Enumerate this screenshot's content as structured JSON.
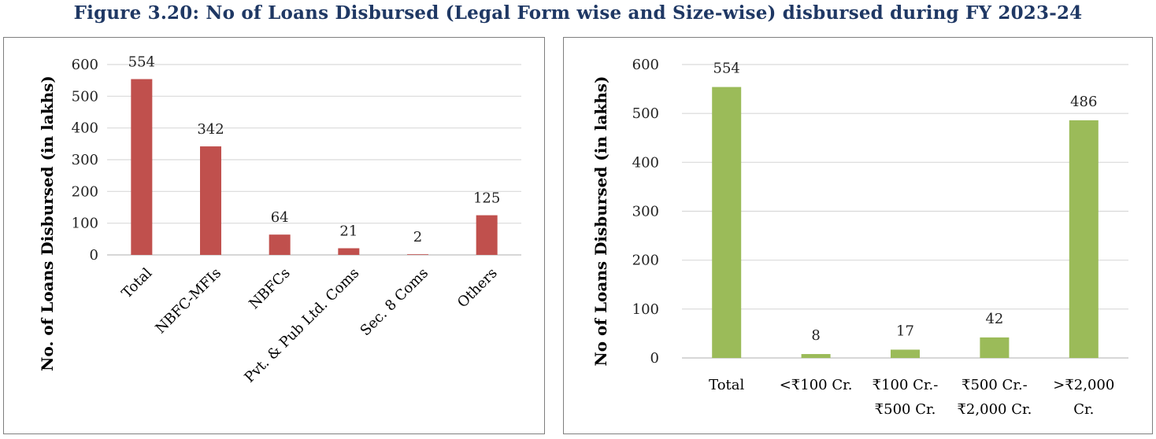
{
  "figure": {
    "title": "Figure 3.20:  No of Loans Disbursed (Legal Form wise and Size-wise) disbursed during FY 2023-24"
  },
  "chart_data": [
    {
      "type": "bar",
      "ylabel": "No. of Loans Disbursed (in lakhs)",
      "categories": [
        "Total",
        "NBFC-MFIs",
        "NBFCs",
        "Pvt. & Pub Ltd. Coms",
        "Sec. 8 Coms",
        "Others"
      ],
      "values": [
        554,
        342,
        64,
        21,
        2,
        125
      ],
      "ylim": [
        0,
        600
      ],
      "yticks": [
        0,
        100,
        200,
        300,
        400,
        500,
        600
      ],
      "color": "#c0504d",
      "grid": true,
      "category_label_rotation": "-45deg"
    },
    {
      "type": "bar",
      "ylabel": "No of Loans Disbursed (in lakhs)",
      "categories": [
        [
          "Total"
        ],
        [
          "<₹100 Cr."
        ],
        [
          "₹100 Cr.-",
          "₹500 Cr."
        ],
        [
          "₹500 Cr.-",
          "₹2,000 Cr."
        ],
        [
          ">₹2,000",
          "Cr."
        ]
      ],
      "values": [
        554,
        8,
        17,
        42,
        486
      ],
      "ylim": [
        0,
        600
      ],
      "yticks": [
        0,
        100,
        200,
        300,
        400,
        500,
        600
      ],
      "color": "#9bbb59",
      "grid": true
    }
  ]
}
